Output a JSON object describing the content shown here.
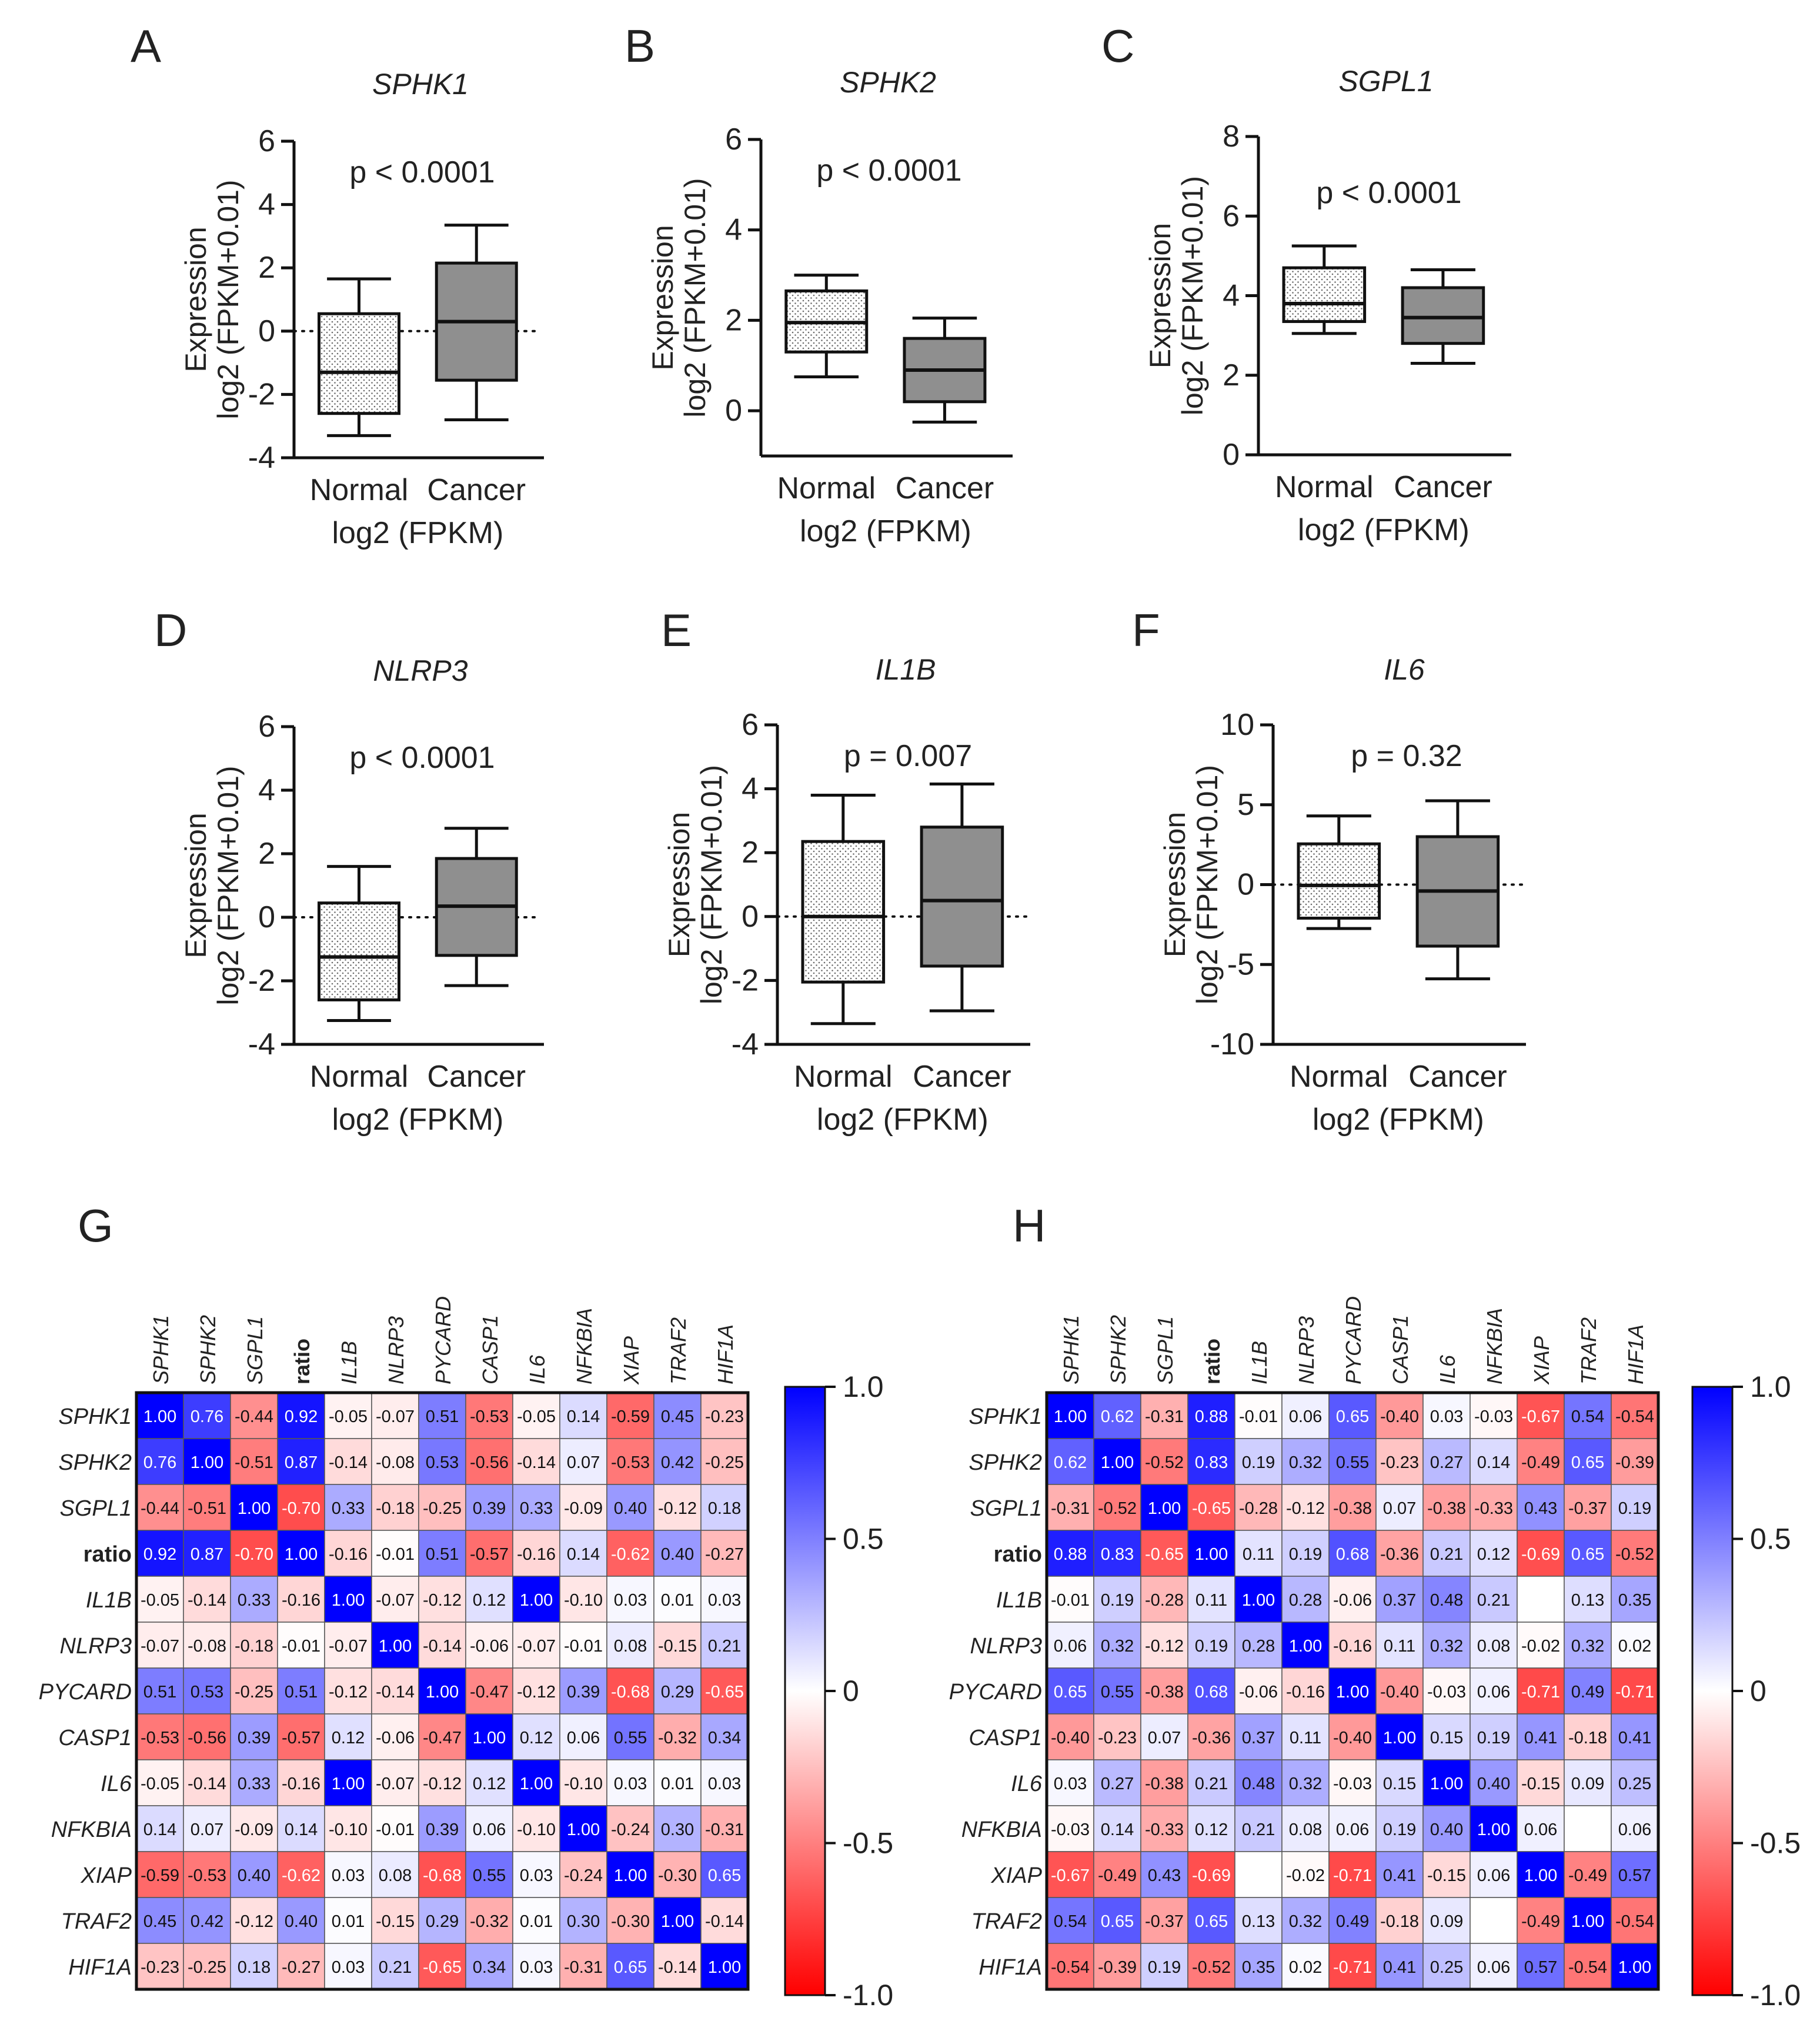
{
  "figure": {
    "panels": {
      "A": {
        "letter": "A"
      },
      "B": {
        "letter": "B"
      },
      "C": {
        "letter": "C"
      },
      "D": {
        "letter": "D"
      },
      "E": {
        "letter": "E"
      },
      "F": {
        "letter": "F"
      },
      "G": {
        "letter": "G"
      },
      "H": {
        "letter": "H"
      }
    }
  },
  "chart_data": [
    {
      "id": "A",
      "type": "box",
      "title": "SPHK1",
      "pvalue": "p < 0.0001",
      "ylabel_line1": "Expression",
      "ylabel_line2": "log2 (FPKM+0.01)",
      "xlabel": "log2 (FPKM)",
      "categories": [
        "Normal",
        "Cancer"
      ],
      "ylim": [
        -4,
        6
      ],
      "yticks": [
        -4,
        -2,
        0,
        2,
        4,
        6
      ],
      "zero_line": true,
      "boxes": [
        {
          "name": "Normal",
          "min": -3.3,
          "q1": -2.6,
          "median": -1.3,
          "q3": 0.55,
          "max": 1.65
        },
        {
          "name": "Cancer",
          "min": -2.8,
          "q1": -1.55,
          "median": 0.3,
          "q3": 2.15,
          "max": 3.35
        }
      ]
    },
    {
      "id": "B",
      "type": "box",
      "title": "SPHK2",
      "pvalue": "p < 0.0001",
      "ylabel_line1": "Expression",
      "ylabel_line2": "log2 (FPKM+0.01)",
      "xlabel": "log2 (FPKM)",
      "categories": [
        "Normal",
        "Cancer"
      ],
      "ylim": [
        -1,
        6
      ],
      "yticks": [
        0,
        2,
        4,
        6
      ],
      "zero_line": false,
      "boxes": [
        {
          "name": "Normal",
          "min": 0.75,
          "q1": 1.3,
          "median": 1.95,
          "q3": 2.65,
          "max": 3.0
        },
        {
          "name": "Cancer",
          "min": -0.25,
          "q1": 0.2,
          "median": 0.9,
          "q3": 1.6,
          "max": 2.05
        }
      ]
    },
    {
      "id": "C",
      "type": "box",
      "title": "SGPL1",
      "pvalue": "p < 0.0001",
      "ylabel_line1": "Expression",
      "ylabel_line2": "log2 (FPKM+0.01)",
      "xlabel": "log2 (FPKM)",
      "categories": [
        "Normal",
        "Cancer"
      ],
      "ylim": [
        0,
        8
      ],
      "yticks": [
        0,
        2,
        4,
        6,
        8
      ],
      "zero_line": false,
      "boxes": [
        {
          "name": "Normal",
          "min": 3.05,
          "q1": 3.35,
          "median": 3.8,
          "q3": 4.7,
          "max": 5.25
        },
        {
          "name": "Cancer",
          "min": 2.3,
          "q1": 2.8,
          "median": 3.45,
          "q3": 4.2,
          "max": 4.65
        }
      ]
    },
    {
      "id": "D",
      "type": "box",
      "title": "NLRP3",
      "pvalue": "p < 0.0001",
      "ylabel_line1": "Expression",
      "ylabel_line2": "log2 (FPKM+0.01)",
      "xlabel": "log2 (FPKM)",
      "categories": [
        "Normal",
        "Cancer"
      ],
      "ylim": [
        -4,
        6
      ],
      "yticks": [
        -4,
        -2,
        0,
        2,
        4,
        6
      ],
      "zero_line": true,
      "boxes": [
        {
          "name": "Normal",
          "min": -3.25,
          "q1": -2.6,
          "median": -1.25,
          "q3": 0.45,
          "max": 1.6
        },
        {
          "name": "Cancer",
          "min": -2.15,
          "q1": -1.2,
          "median": 0.35,
          "q3": 1.85,
          "max": 2.8
        }
      ]
    },
    {
      "id": "E",
      "type": "box",
      "title": "IL1B",
      "pvalue": "p = 0.007",
      "ylabel_line1": "Expression",
      "ylabel_line2": "log2 (FPKM+0.01)",
      "xlabel": "log2 (FPKM)",
      "categories": [
        "Normal",
        "Cancer"
      ],
      "ylim": [
        -4,
        6
      ],
      "yticks": [
        -4,
        -2,
        0,
        2,
        4,
        6
      ],
      "zero_line": true,
      "boxes": [
        {
          "name": "Normal",
          "min": -3.35,
          "q1": -2.05,
          "median": 0.0,
          "q3": 2.35,
          "max": 3.8
        },
        {
          "name": "Cancer",
          "min": -2.95,
          "q1": -1.55,
          "median": 0.5,
          "q3": 2.8,
          "max": 4.15
        }
      ]
    },
    {
      "id": "F",
      "type": "box",
      "title": "IL6",
      "pvalue": "p = 0.32",
      "ylabel_line1": "Expression",
      "ylabel_line2": "log2 (FPKM+0.01)",
      "xlabel": "log2 (FPKM)",
      "categories": [
        "Normal",
        "Cancer"
      ],
      "ylim": [
        -10,
        10
      ],
      "yticks": [
        -10,
        -5,
        0,
        5,
        10
      ],
      "zero_line": true,
      "boxes": [
        {
          "name": "Normal",
          "min": -2.75,
          "q1": -2.1,
          "median": -0.05,
          "q3": 2.55,
          "max": 4.3
        },
        {
          "name": "Cancer",
          "min": -5.9,
          "q1": -3.85,
          "median": -0.4,
          "q3": 3.0,
          "max": 5.25
        }
      ]
    },
    {
      "id": "G",
      "type": "heatmap",
      "labels": [
        "SPHK1",
        "SPHK2",
        "SGPL1",
        "ratio",
        "IL1B",
        "NLRP3",
        "PYCARD",
        "CASP1",
        "IL6",
        "NFKBIA",
        "XIAP",
        "TRAF2",
        "HIF1A"
      ],
      "colorbar_ticks": [
        "1.0",
        "0.5",
        "0",
        "-0.5",
        "-1.0"
      ],
      "vmin": -1.0,
      "vmax": 1.0,
      "values": [
        [
          "1.00",
          "0.76",
          "-0.44",
          "0.92",
          "-0.05",
          "-0.07",
          "0.51",
          "-0.53",
          "-0.05",
          "0.14",
          "-0.59",
          "0.45",
          "-0.23"
        ],
        [
          "0.76",
          "1.00",
          "-0.51",
          "0.87",
          "-0.14",
          "-0.08",
          "0.53",
          "-0.56",
          "-0.14",
          "0.07",
          "-0.53",
          "0.42",
          "-0.25"
        ],
        [
          "-0.44",
          "-0.51",
          "1.00",
          "-0.70",
          "0.33",
          "-0.18",
          "-0.25",
          "0.39",
          "0.33",
          "-0.09",
          "0.40",
          "-0.12",
          "0.18"
        ],
        [
          "0.92",
          "0.87",
          "-0.70",
          "1.00",
          "-0.16",
          "-0.01",
          "0.51",
          "-0.57",
          "-0.16",
          "0.14",
          "-0.62",
          "0.40",
          "-0.27"
        ],
        [
          "-0.05",
          "-0.14",
          "0.33",
          "-0.16",
          "1.00",
          "-0.07",
          "-0.12",
          "0.12",
          "1.00",
          "-0.10",
          "0.03",
          "0.01",
          "0.03"
        ],
        [
          "-0.07",
          "-0.08",
          "-0.18",
          "-0.01",
          "-0.07",
          "1.00",
          "-0.14",
          "-0.06",
          "-0.07",
          "-0.01",
          "0.08",
          "-0.15",
          "0.21"
        ],
        [
          "0.51",
          "0.53",
          "-0.25",
          "0.51",
          "-0.12",
          "-0.14",
          "1.00",
          "-0.47",
          "-0.12",
          "0.39",
          "-0.68",
          "0.29",
          "-0.65"
        ],
        [
          "-0.53",
          "-0.56",
          "0.39",
          "-0.57",
          "0.12",
          "-0.06",
          "-0.47",
          "1.00",
          "0.12",
          "0.06",
          "0.55",
          "-0.32",
          "0.34"
        ],
        [
          "-0.05",
          "-0.14",
          "0.33",
          "-0.16",
          "1.00",
          "-0.07",
          "-0.12",
          "0.12",
          "1.00",
          "-0.10",
          "0.03",
          "0.01",
          "0.03"
        ],
        [
          "0.14",
          "0.07",
          "-0.09",
          "0.14",
          "-0.10",
          "-0.01",
          "0.39",
          "0.06",
          "-0.10",
          "1.00",
          "-0.24",
          "0.30",
          "-0.31"
        ],
        [
          "-0.59",
          "-0.53",
          "0.40",
          "-0.62",
          "0.03",
          "0.08",
          "-0.68",
          "0.55",
          "0.03",
          "-0.24",
          "1.00",
          "-0.30",
          "0.65"
        ],
        [
          "0.45",
          "0.42",
          "-0.12",
          "0.40",
          "0.01",
          "-0.15",
          "0.29",
          "-0.32",
          "0.01",
          "0.30",
          "-0.30",
          "1.00",
          "-0.14"
        ],
        [
          "-0.23",
          "-0.25",
          "0.18",
          "-0.27",
          "0.03",
          "0.21",
          "-0.65",
          "0.34",
          "0.03",
          "-0.31",
          "0.65",
          "-0.14",
          "1.00"
        ]
      ]
    },
    {
      "id": "H",
      "type": "heatmap",
      "labels": [
        "SPHK1",
        "SPHK2",
        "SGPL1",
        "ratio",
        "IL1B",
        "NLRP3",
        "PYCARD",
        "CASP1",
        "IL6",
        "NFKBIA",
        "XIAP",
        "TRAF2",
        "HIF1A"
      ],
      "colorbar_ticks": [
        "1.0",
        "0.5",
        "0",
        "-0.5",
        "-1.0"
      ],
      "vmin": -1.0,
      "vmax": 1.0,
      "values": [
        [
          "1.00",
          "0.62",
          "-0.31",
          "0.88",
          "-0.01",
          "0.06",
          "0.65",
          "-0.40",
          "0.03",
          "-0.03",
          "-0.67",
          "0.54",
          "-0.54"
        ],
        [
          "0.62",
          "1.00",
          "-0.52",
          "0.83",
          "0.19",
          "0.32",
          "0.55",
          "-0.23",
          "0.27",
          "0.14",
          "-0.49",
          "0.65",
          "-0.39"
        ],
        [
          "-0.31",
          "-0.52",
          "1.00",
          "-0.65",
          "-0.28",
          "-0.12",
          "-0.38",
          "0.07",
          "-0.38",
          "-0.33",
          "0.43",
          "-0.37",
          "0.19"
        ],
        [
          "0.88",
          "0.83",
          "-0.65",
          "1.00",
          "0.11",
          "0.19",
          "0.68",
          "-0.36",
          "0.21",
          "0.12",
          "-0.69",
          "0.65",
          "-0.52"
        ],
        [
          "-0.01",
          "0.19",
          "-0.28",
          "0.11",
          "1.00",
          "0.28",
          "-0.06",
          "0.37",
          "0.48",
          "0.21",
          "",
          "0.13",
          "0.35"
        ],
        [
          "0.06",
          "0.32",
          "-0.12",
          "0.19",
          "0.28",
          "1.00",
          "-0.16",
          "0.11",
          "0.32",
          "0.08",
          "-0.02",
          "0.32",
          "0.02"
        ],
        [
          "0.65",
          "0.55",
          "-0.38",
          "0.68",
          "-0.06",
          "-0.16",
          "1.00",
          "-0.40",
          "-0.03",
          "0.06",
          "-0.71",
          "0.49",
          "-0.71"
        ],
        [
          "-0.40",
          "-0.23",
          "0.07",
          "-0.36",
          "0.37",
          "0.11",
          "-0.40",
          "1.00",
          "0.15",
          "0.19",
          "0.41",
          "-0.18",
          "0.41"
        ],
        [
          "0.03",
          "0.27",
          "-0.38",
          "0.21",
          "0.48",
          "0.32",
          "-0.03",
          "0.15",
          "1.00",
          "0.40",
          "-0.15",
          "0.09",
          "0.25"
        ],
        [
          "-0.03",
          "0.14",
          "-0.33",
          "0.12",
          "0.21",
          "0.08",
          "0.06",
          "0.19",
          "0.40",
          "1.00",
          "0.06",
          "",
          "0.06"
        ],
        [
          "-0.67",
          "-0.49",
          "0.43",
          "-0.69",
          "",
          "-0.02",
          "-0.71",
          "0.41",
          "-0.15",
          "0.06",
          "1.00",
          "-0.49",
          "0.57"
        ],
        [
          "0.54",
          "0.65",
          "-0.37",
          "0.65",
          "0.13",
          "0.32",
          "0.49",
          "-0.18",
          "0.09",
          "",
          "-0.49",
          "1.00",
          "-0.54"
        ],
        [
          "-0.54",
          "-0.39",
          "0.19",
          "-0.52",
          "0.35",
          "0.02",
          "-0.71",
          "0.41",
          "0.25",
          "0.06",
          "0.57",
          "-0.54",
          "1.00"
        ]
      ]
    }
  ]
}
